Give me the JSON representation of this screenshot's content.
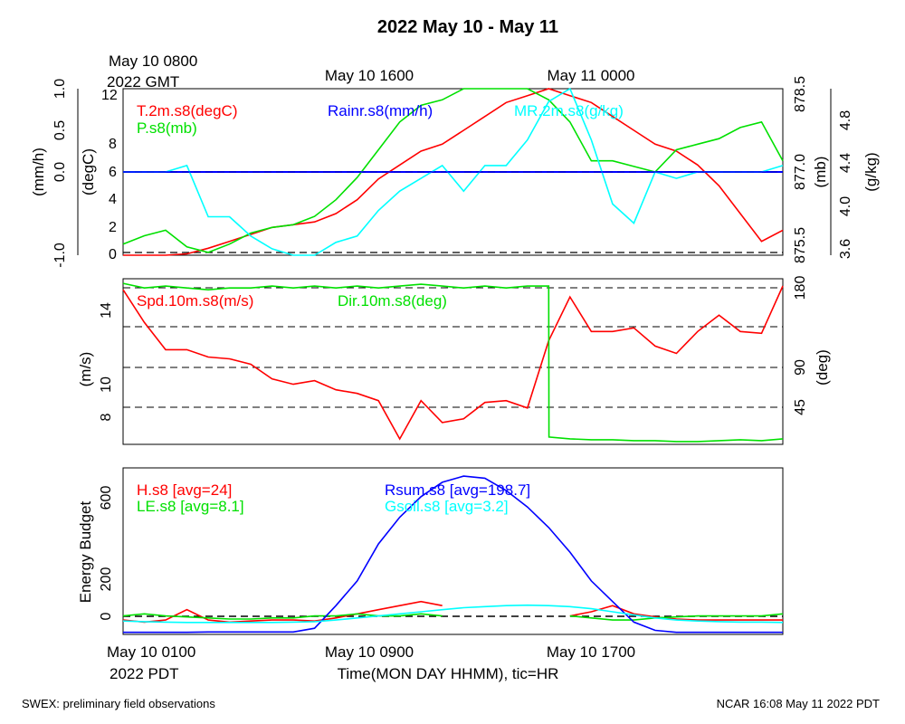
{
  "title": "2022 May 10 - May 11",
  "top_gmt": {
    "line1": "May 10 0800",
    "line2": "2022 GMT",
    "mid": "May 10 1600",
    "right": "May 11 0000"
  },
  "bottom_pdt": {
    "left": "May 10 0100",
    "left2": "2022 PDT",
    "mid": "May 10 0900",
    "right": "May 10 1700"
  },
  "xaxis_label": "Time(MON DAY HHMM), tic=HR",
  "footer_left": "SWEX: preliminary field observations",
  "footer_right": "NCAR 16:08 May 11 2022 PDT",
  "colors": {
    "red": "#ff0000",
    "green": "#00e000",
    "blue": "#0000ff",
    "cyan": "#00ffff",
    "black": "#000000"
  },
  "chart_data": [
    {
      "type": "line",
      "panel": "top",
      "x_range_hours": [
        0,
        31
      ],
      "axes": {
        "left_outer": {
          "label": "(mm/h)",
          "ticks": [
            "-1.0",
            "0.0",
            "0.5",
            "1.0"
          ],
          "ylim": [
            -1.0,
            1.0
          ]
        },
        "left_inner": {
          "label": "(degC)",
          "ticks": [
            "0",
            "2",
            "4",
            "6",
            "8",
            "12"
          ],
          "ylim": [
            0,
            12
          ]
        },
        "right_inner": {
          "label": "(mb)",
          "ticks": [
            "875.5",
            "877.0",
            "878.5"
          ],
          "ylim": [
            875.5,
            878.5
          ]
        },
        "right_outer": {
          "label": "(g/kg)",
          "ticks": [
            "3.6",
            "4.0",
            "4.4",
            "4.8"
          ],
          "ylim": [
            3.6,
            4.9
          ]
        }
      },
      "series": [
        {
          "name": "T.2m.s8(degC)",
          "color": "#ff0000",
          "axis": "degC",
          "x": [
            0,
            2,
            3,
            4,
            5,
            6,
            7,
            8,
            9,
            10,
            11,
            12,
            13,
            14,
            15,
            16,
            17,
            18,
            19,
            20,
            21,
            22,
            23,
            24,
            25,
            26,
            27,
            28,
            29,
            30,
            31
          ],
          "y": [
            0,
            0,
            0.1,
            0.5,
            1,
            1.5,
            2,
            2.2,
            2.4,
            3,
            4,
            5.5,
            6.5,
            7.5,
            8,
            9,
            10,
            11,
            11.5,
            12,
            11.5,
            11,
            10,
            9,
            8,
            7.5,
            6.5,
            5,
            3,
            1,
            1.8
          ]
        },
        {
          "name": "P.s8(mb)",
          "color": "#00e000",
          "axis": "mb",
          "x": [
            0,
            1,
            2,
            3,
            4,
            5,
            6,
            7,
            8,
            9,
            10,
            11,
            12,
            13,
            14,
            15,
            16,
            17,
            18,
            19,
            20,
            21,
            22,
            23,
            24,
            25,
            26,
            27,
            28,
            29,
            30,
            31
          ],
          "y": [
            875.7,
            875.85,
            875.95,
            875.65,
            875.55,
            875.7,
            875.9,
            876.0,
            876.05,
            876.2,
            876.5,
            876.9,
            877.4,
            877.9,
            878.2,
            878.3,
            878.5,
            878.5,
            878.5,
            878.5,
            878.3,
            877.9,
            877.2,
            877.2,
            877.1,
            877.0,
            877.4,
            877.5,
            877.6,
            877.8,
            877.9,
            877.2
          ]
        },
        {
          "name": "MR.2m.s8(g/kg)",
          "color": "#00ffff",
          "axis": "g/kg",
          "x": [
            0,
            1,
            2,
            3,
            4,
            5,
            6,
            7,
            8,
            9,
            10,
            11,
            12,
            13,
            14,
            15,
            16,
            17,
            18,
            19,
            20,
            21,
            22,
            23,
            24,
            25,
            26,
            27,
            28,
            29,
            30,
            31
          ],
          "y": [
            4.25,
            4.25,
            4.25,
            4.3,
            3.9,
            3.9,
            3.75,
            3.65,
            3.6,
            3.6,
            3.7,
            3.75,
            3.95,
            4.1,
            4.2,
            4.3,
            4.1,
            4.3,
            4.3,
            4.5,
            4.8,
            4.9,
            4.5,
            4.0,
            3.85,
            4.25,
            4.2,
            4.25,
            4.25,
            4.25,
            4.25,
            4.3
          ]
        },
        {
          "name": "Rainr.s8(mm/h)",
          "color": "#0000ff",
          "axis": "mm/h",
          "x": [
            0,
            31
          ],
          "y": [
            0,
            0
          ]
        }
      ],
      "reference_lines": [
        "0.0 mm/h dashed",
        "0 degC dashed"
      ]
    },
    {
      "type": "line",
      "panel": "middle",
      "x_range_hours": [
        0,
        31
      ],
      "axes": {
        "left": {
          "label": "(m/s)",
          "ticks": [
            "8",
            "10",
            "14"
          ],
          "ylim": [
            6.8,
            15.9
          ]
        },
        "right": {
          "label": "(deg)",
          "ticks": [
            "45",
            "90",
            "180"
          ],
          "ylim": [
            0,
            180
          ]
        }
      },
      "series": [
        {
          "name": "Spd.10m.s8(m/s)",
          "color": "#ff0000",
          "axis": "m/s",
          "x": [
            0,
            1,
            2,
            3,
            4,
            5,
            6,
            7,
            8,
            9,
            10,
            11,
            12,
            13,
            14,
            15,
            16,
            17,
            18,
            19,
            20,
            21,
            22,
            23,
            24,
            25,
            26,
            27,
            28,
            29,
            30,
            31
          ],
          "y": [
            15.3,
            13.5,
            12.0,
            12.0,
            11.6,
            11.5,
            11.2,
            10.4,
            10.1,
            10.3,
            9.8,
            9.6,
            9.2,
            7.1,
            9.2,
            8.0,
            8.2,
            9.1,
            9.2,
            8.8,
            12.5,
            14.9,
            13.0,
            13.0,
            13.2,
            12.2,
            11.8,
            13.0,
            13.9,
            13.0,
            12.9,
            15.5
          ]
        },
        {
          "name": "Dir.10m.s8(deg)",
          "color": "#00e000",
          "axis": "deg",
          "x": [
            0,
            1,
            2,
            3,
            4,
            5,
            6,
            7,
            8,
            9,
            10,
            11,
            12,
            13,
            14,
            15,
            16,
            17,
            18,
            19,
            20,
            20.01,
            21,
            22,
            23,
            24,
            25,
            26,
            27,
            28,
            29,
            30,
            31
          ],
          "y": [
            175,
            170,
            172,
            170,
            168,
            170,
            170,
            172,
            170,
            172,
            170,
            172,
            170,
            172,
            174,
            172,
            170,
            172,
            170,
            172,
            172,
            8,
            6,
            5,
            5,
            4,
            4,
            3,
            3,
            4,
            5,
            4,
            6
          ]
        }
      ],
      "reference_lines": [
        "45 deg dashed",
        "90 deg dashed",
        "135 deg dashed",
        "180 deg dashed"
      ]
    },
    {
      "type": "line",
      "panel": "bottom",
      "x_range_hours": [
        0,
        31
      ],
      "axes": {
        "left": {
          "label": "Energy Budget",
          "ticks": [
            "0",
            "200",
            "600"
          ],
          "ylim": [
            -80,
            730
          ]
        }
      },
      "series": [
        {
          "name": "H.s8 [avg=24]",
          "color": "#ff0000",
          "x": [
            0,
            1,
            2,
            3,
            4,
            5,
            6,
            7,
            8,
            9,
            10,
            11,
            12,
            13,
            14,
            15,
            16,
            17,
            18,
            19,
            20,
            21,
            22,
            23,
            24,
            25,
            26,
            27,
            28,
            29,
            30,
            31
          ],
          "y": [
            -10,
            -20,
            -10,
            40,
            -10,
            -20,
            -15,
            -10,
            -10,
            -15,
            0,
            20,
            40,
            60,
            80,
            60,
            null,
            null,
            null,
            null,
            null,
            10,
            30,
            60,
            20,
            5,
            -5,
            -10,
            -10,
            -10,
            -10,
            -10
          ]
        },
        {
          "name": "LE.s8 [avg=8.1]",
          "color": "#00e000",
          "x": [
            0,
            1,
            2,
            3,
            4,
            5,
            6,
            7,
            8,
            9,
            10,
            11,
            12,
            13,
            14,
            15,
            16,
            17,
            18,
            19,
            20,
            21,
            22,
            23,
            24,
            25,
            26,
            27,
            28,
            29,
            30,
            31
          ],
          "y": [
            10,
            20,
            10,
            5,
            0,
            -5,
            -5,
            0,
            0,
            10,
            10,
            20,
            10,
            10,
            20,
            10,
            null,
            null,
            null,
            null,
            null,
            10,
            0,
            -10,
            -10,
            0,
            5,
            10,
            10,
            10,
            10,
            20
          ]
        },
        {
          "name": "Rsum.s8 [avg=198.7]",
          "color": "#0000ff",
          "x": [
            0,
            1,
            2,
            3,
            4,
            5,
            6,
            7,
            8,
            9,
            10,
            11,
            12,
            13,
            14,
            15,
            16,
            17,
            18,
            19,
            20,
            21,
            22,
            23,
            24,
            25,
            26,
            27,
            28,
            29,
            30,
            31
          ],
          "y": [
            -70,
            -70,
            -70,
            -70,
            -68,
            -68,
            -68,
            -68,
            -68,
            -50,
            60,
            180,
            360,
            490,
            590,
            660,
            690,
            680,
            620,
            540,
            440,
            320,
            180,
            80,
            -20,
            -60,
            -70,
            -70,
            -70,
            -70,
            -70,
            -70
          ]
        },
        {
          "name": "Gsoil.s8 [avg=3.2]",
          "color": "#00ffff",
          "x": [
            0,
            1,
            2,
            3,
            4,
            5,
            6,
            7,
            8,
            9,
            10,
            11,
            12,
            13,
            14,
            15,
            16,
            17,
            18,
            19,
            20,
            21,
            22,
            23,
            24,
            25,
            26,
            27,
            28,
            29,
            30,
            31
          ],
          "y": [
            -15,
            -18,
            -20,
            -22,
            -22,
            -22,
            -22,
            -22,
            -20,
            -18,
            -10,
            0,
            10,
            20,
            30,
            40,
            50,
            55,
            60,
            62,
            60,
            55,
            45,
            30,
            15,
            0,
            -10,
            -15,
            -18,
            -20,
            -20,
            -22
          ]
        }
      ],
      "reference_lines": [
        "0 dashed"
      ]
    }
  ]
}
